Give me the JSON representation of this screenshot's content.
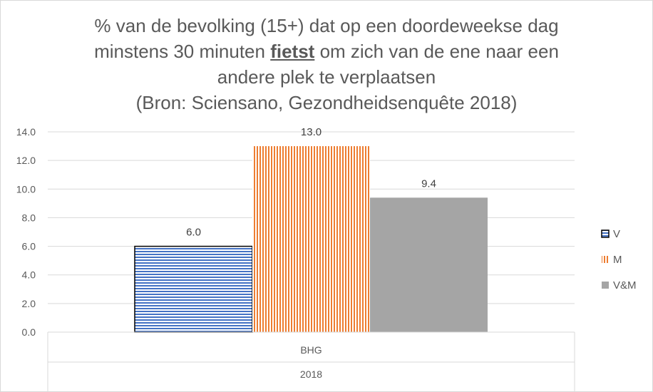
{
  "chart_data": {
    "type": "bar",
    "title_lines": [
      {
        "pre": "% van de bevolking (15+) dat op een doordeweekse dag",
        "bold": "",
        "post": ""
      },
      {
        "pre": "minstens 30 minuten ",
        "bold": "fietst",
        "post": " om zich van de ene naar een"
      },
      {
        "pre": "andere plek te verplaatsen",
        "bold": "",
        "post": ""
      },
      {
        "pre": "(Bron: Sciensano, Gezondheidsenquête  2018)",
        "bold": "",
        "post": ""
      }
    ],
    "categories": [
      "BHG"
    ],
    "group_label": "2018",
    "series": [
      {
        "name": "V",
        "values": [
          6.0
        ],
        "pattern": "horizontal-stripes",
        "color": "#4472c4",
        "border": "#000000"
      },
      {
        "name": "M",
        "values": [
          13.0
        ],
        "pattern": "vertical-stripes",
        "color": "#ed7d31"
      },
      {
        "name": "V&M",
        "values": [
          9.4
        ],
        "pattern": "solid",
        "color": "#a5a5a5"
      }
    ],
    "data_labels": [
      "6.0",
      "13.0",
      "9.4"
    ],
    "ylim": [
      0,
      14
    ],
    "yticks": [
      "0.0",
      "2.0",
      "4.0",
      "6.0",
      "8.0",
      "10.0",
      "12.0",
      "14.0"
    ],
    "grid": true,
    "legend_position": "right"
  }
}
